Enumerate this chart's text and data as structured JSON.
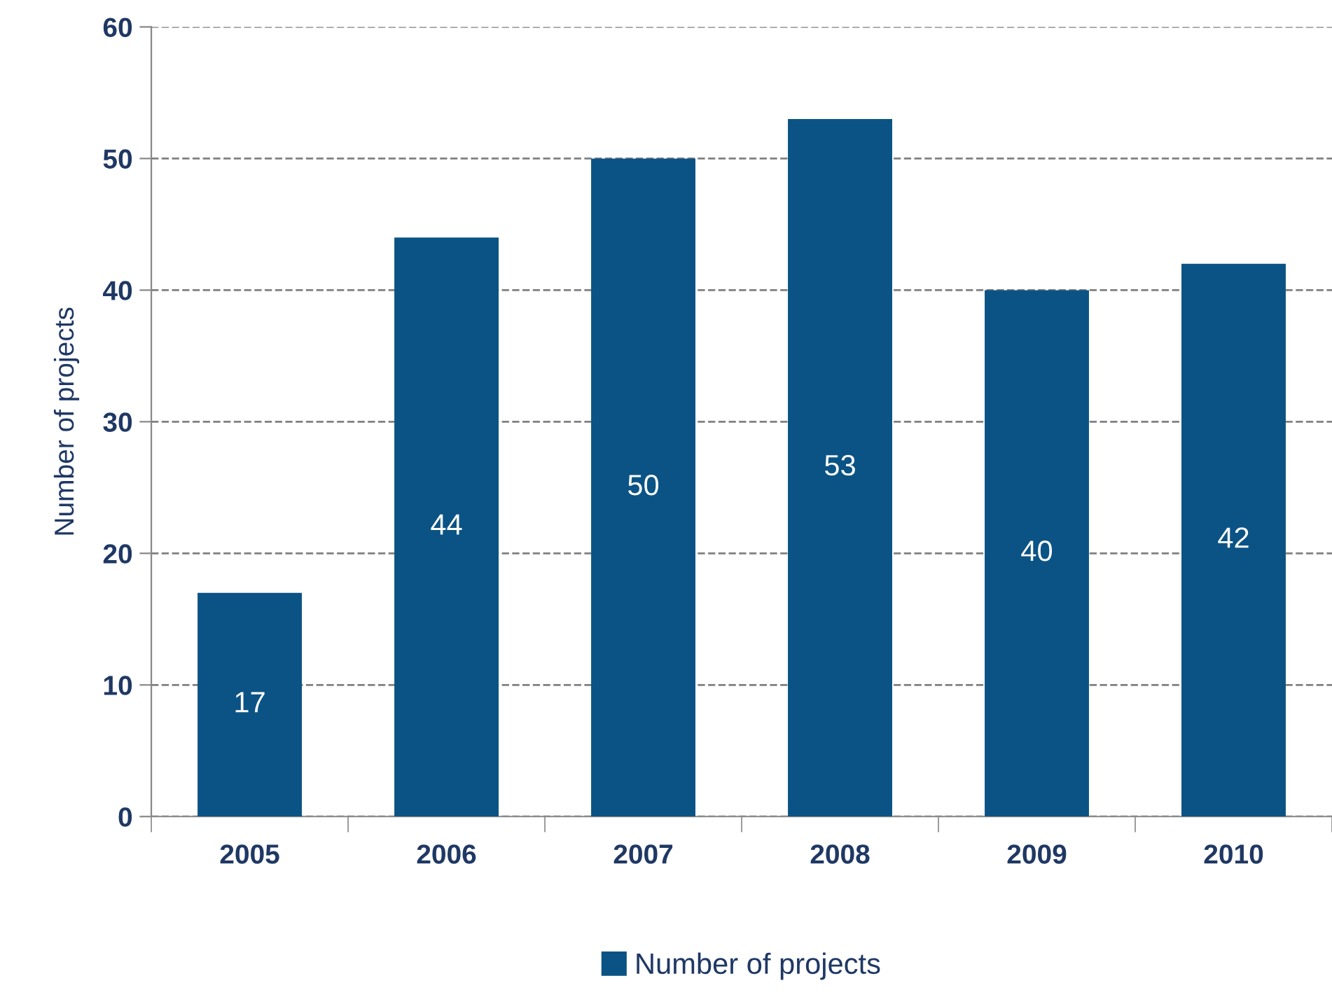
{
  "chart_data": {
    "type": "bar",
    "ylabel": "Number of projects",
    "categories": [
      "2005",
      "2006",
      "2007",
      "2008",
      "2009",
      "2010"
    ],
    "series": [
      {
        "name": "Number of projects",
        "color": "#0b5384",
        "values": [
          17,
          44,
          50,
          53,
          40,
          42
        ]
      }
    ],
    "ylim": [
      0,
      60
    ],
    "yticks": [
      0,
      10,
      20,
      30,
      40,
      50,
      60
    ],
    "grid": "y",
    "legend": "bottom",
    "data_labels": true
  }
}
